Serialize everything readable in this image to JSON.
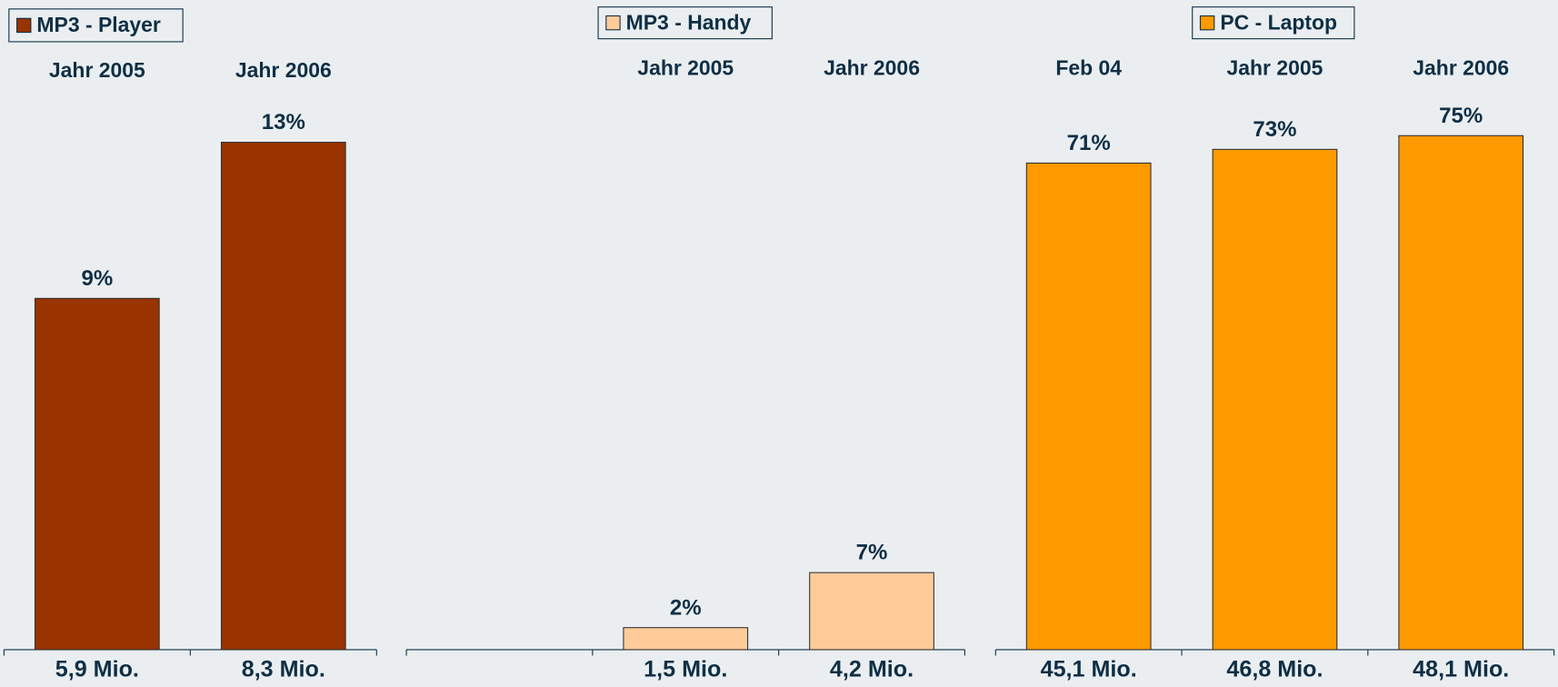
{
  "chart_data": [
    {
      "type": "bar",
      "categories": [
        "Jahr 2005",
        "Jahr 2006"
      ],
      "series": [
        {
          "name": "MP3 - Player",
          "color": "#993300",
          "values": [
            9,
            13
          ],
          "value_labels": [
            "9%",
            "13%"
          ]
        }
      ],
      "counts": [
        "5,9 Mio.",
        "8,3 Mio."
      ],
      "ylim": [
        0,
        14.1
      ]
    },
    {
      "type": "bar",
      "categories": [
        null,
        "Jahr 2005",
        "Jahr 2006"
      ],
      "series": [
        {
          "name": "MP3 - Handy",
          "color": "#ffcc99",
          "values": [
            null,
            2,
            7
          ],
          "value_labels": [
            null,
            "2%",
            "7%"
          ]
        }
      ],
      "counts": [
        null,
        "1,5 Mio.",
        "4,2 Mio."
      ],
      "ylim": [
        0,
        50
      ]
    },
    {
      "type": "bar",
      "categories": [
        "Feb 04",
        "Jahr 2005",
        "Jahr 2006"
      ],
      "series": [
        {
          "name": "PC - Laptop",
          "color": "#ff9900",
          "values": [
            71,
            73,
            75
          ],
          "value_labels": [
            "71%",
            "73%",
            "75%"
          ]
        }
      ],
      "counts": [
        "45,1 Mio.",
        "46,8 Mio.",
        "48,1 Mio."
      ],
      "ylim": [
        0,
        80.3
      ]
    }
  ]
}
